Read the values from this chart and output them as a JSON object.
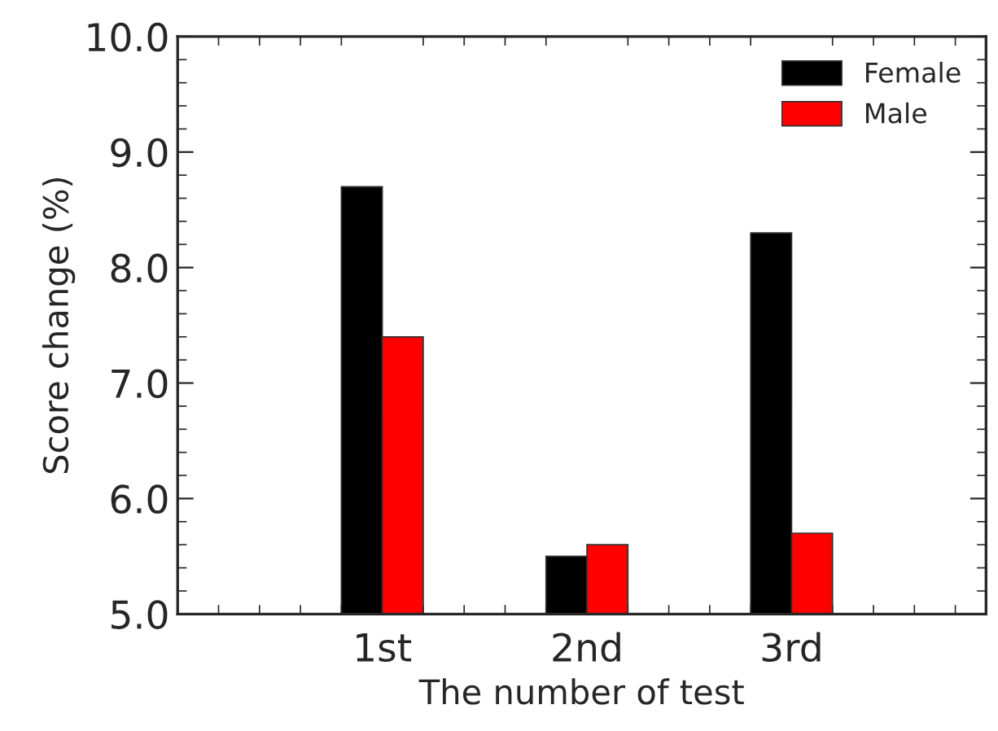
{
  "chart_data": {
    "type": "bar",
    "xlabel": "The number of test",
    "ylabel": "Score change (%)",
    "categories": [
      "1st",
      "2nd",
      "3rd"
    ],
    "series": [
      {
        "name": "Female",
        "color": "#000000",
        "values": [
          8.7,
          5.5,
          8.3
        ]
      },
      {
        "name": "Male",
        "color": "#ff0000",
        "values": [
          7.4,
          5.6,
          5.7
        ]
      }
    ],
    "ylim": [
      5.0,
      10.0
    ],
    "yticks": [
      {
        "value": 5,
        "label": "5.0"
      },
      {
        "value": 6,
        "label": "6.0"
      },
      {
        "value": 7,
        "label": "7.0"
      },
      {
        "value": 8,
        "label": "8.0"
      },
      {
        "value": 9,
        "label": "9.0"
      },
      {
        "value": 10,
        "label": "10.0"
      }
    ],
    "legend": "top right",
    "grid": false
  }
}
